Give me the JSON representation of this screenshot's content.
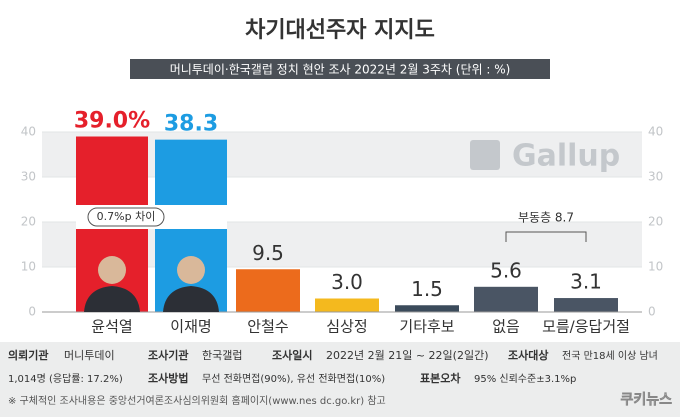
{
  "chart_data": {
    "type": "bar",
    "title": "차기대선주자 지지도",
    "subtitle": "머니투데이·한국갤럽 정치 현안 조사 2022년 2월 3주차 (단위 : %)",
    "categories": [
      "윤석열",
      "이재명",
      "안철수",
      "심상정",
      "기타후보",
      "없음",
      "모름/응답거절"
    ],
    "values": [
      39.0,
      38.3,
      9.5,
      3.0,
      1.5,
      5.6,
      3.1
    ],
    "value_labels": [
      "39.0%",
      "38.3",
      "9.5",
      "3.0",
      "1.5",
      "5.6",
      "3.1"
    ],
    "colors": [
      "#e5202b",
      "#1d9ce2",
      "#ec6b1c",
      "#f4b91e",
      "#3b4b5b",
      "#4a5564",
      "#4a5564"
    ],
    "label_colors": [
      "#e5202b",
      "#1d9ce2",
      "#333333",
      "#333333",
      "#333333",
      "#333333",
      "#333333"
    ],
    "ylim": [
      0,
      40
    ],
    "yticks": [
      0,
      10,
      20,
      30,
      40
    ],
    "gap_note": "0.7%p 차이",
    "undecided_note": "부동층 8.7",
    "logo": "Gallup"
  },
  "footer": {
    "client_label": "의뢰기관",
    "client": "머니투데이",
    "agency_label": "조사기관",
    "agency": "한국갤럽",
    "date_label": "조사일시",
    "date": "2022년 2월 21일 ~ 22일(2일간)",
    "target_label": "조사대상",
    "target": "전국 만18세 이상 남녀",
    "sample": "1,014명 (응답률: 17.2%)",
    "method_label": "조사방법",
    "method": "무선 전화면접(90%), 유선 전화면접(10%)",
    "error_label": "표본오차",
    "error": "95% 신뢰수준±3.1%p",
    "note": "※ 구체적인 조사내용은 중앙선거여론조사심의위원회 홈페이지(www.nes dc.go.kr) 참고",
    "brand": "쿠키뉴스"
  }
}
